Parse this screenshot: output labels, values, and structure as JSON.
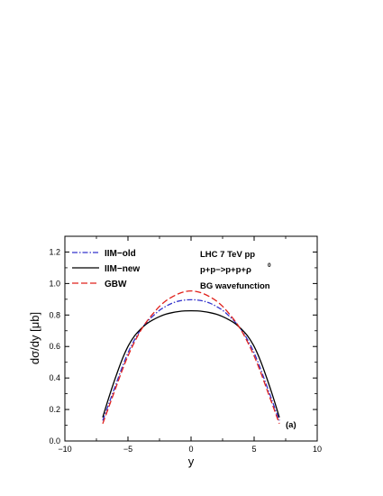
{
  "chart_data": {
    "type": "line",
    "title": "",
    "xlabel": "y",
    "ylabel": "dσ/dy [μb]",
    "xlim": [
      -10,
      10
    ],
    "ylim": [
      0.0,
      1.3
    ],
    "xticks": [
      -10,
      -5,
      0,
      5,
      10
    ],
    "yticks": [
      0.0,
      0.2,
      0.4,
      0.6,
      0.8,
      1.0,
      1.2
    ],
    "xtick_labels": [
      "−10",
      "−5",
      "0",
      "5",
      "10"
    ],
    "ytick_labels": [
      "0.0",
      "0.2",
      "0.4",
      "0.6",
      "0.8",
      "1.0",
      "1.2"
    ],
    "grid": false,
    "legend_position": "top-left",
    "annotations": [
      "LHC 7 TeV pp",
      "p+p−>p+p+ρ",
      "0",
      "BG wavefunction",
      "(a)"
    ],
    "series": [
      {
        "name": "IIM−old",
        "color": "#3333cc",
        "dash": "dash-dot",
        "x": [
          -7,
          -6.5,
          -6,
          -5.5,
          -5,
          -4.5,
          -4,
          -3.5,
          -3,
          -2.5,
          -2,
          -1.5,
          -1,
          -0.5,
          0,
          0.5,
          1,
          1.5,
          2,
          2.5,
          3,
          3.5,
          4,
          4.5,
          5,
          5.5,
          6,
          6.5,
          7
        ],
        "y": [
          0.13,
          0.24,
          0.35,
          0.46,
          0.56,
          0.64,
          0.705,
          0.755,
          0.795,
          0.83,
          0.855,
          0.875,
          0.888,
          0.895,
          0.897,
          0.895,
          0.888,
          0.875,
          0.855,
          0.83,
          0.795,
          0.755,
          0.705,
          0.64,
          0.56,
          0.46,
          0.35,
          0.24,
          0.13
        ]
      },
      {
        "name": "IIM−new",
        "color": "#000000",
        "dash": "solid",
        "x": [
          -7,
          -6.5,
          -6,
          -5.5,
          -5,
          -4.5,
          -4,
          -3.5,
          -3,
          -2.5,
          -2,
          -1.5,
          -1,
          -0.5,
          0,
          0.5,
          1,
          1.5,
          2,
          2.5,
          3,
          3.5,
          4,
          4.5,
          5,
          5.5,
          6,
          6.5,
          7
        ],
        "y": [
          0.15,
          0.28,
          0.4,
          0.51,
          0.6,
          0.665,
          0.71,
          0.745,
          0.77,
          0.79,
          0.805,
          0.815,
          0.822,
          0.826,
          0.827,
          0.826,
          0.822,
          0.815,
          0.805,
          0.79,
          0.77,
          0.745,
          0.71,
          0.665,
          0.6,
          0.51,
          0.4,
          0.28,
          0.15
        ]
      },
      {
        "name": "GBW",
        "color": "#e0201a",
        "dash": "dashed",
        "x": [
          -7,
          -6.5,
          -6,
          -5.5,
          -5,
          -4.5,
          -4,
          -3.5,
          -3,
          -2.5,
          -2,
          -1.5,
          -1,
          -0.5,
          0,
          0.5,
          1,
          1.5,
          2,
          2.5,
          3,
          3.5,
          4,
          4.5,
          5,
          5.5,
          6,
          6.5,
          7
        ],
        "y": [
          0.11,
          0.22,
          0.33,
          0.44,
          0.54,
          0.625,
          0.7,
          0.76,
          0.81,
          0.855,
          0.89,
          0.915,
          0.935,
          0.948,
          0.953,
          0.948,
          0.935,
          0.915,
          0.89,
          0.855,
          0.81,
          0.76,
          0.7,
          0.625,
          0.54,
          0.44,
          0.33,
          0.22,
          0.11
        ]
      }
    ]
  }
}
